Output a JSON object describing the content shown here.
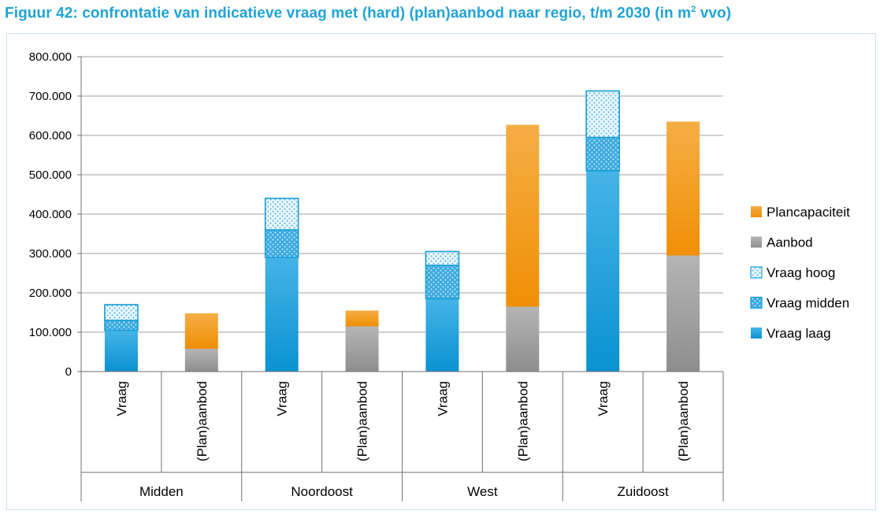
{
  "title": {
    "main": "Figuur 42: confrontatie van indicatieve vraag met (hard) (plan)aanbod naar regio, t/m 2030 (in m",
    "sup": "2",
    "suffix": " vvo)"
  },
  "chart_data": {
    "type": "bar",
    "stacked": true,
    "ylim": [
      0,
      800000
    ],
    "yticks": [
      0,
      100000,
      200000,
      300000,
      400000,
      500000,
      600000,
      700000,
      800000
    ],
    "ytick_labels": [
      "0",
      "100.000",
      "200.000",
      "300.000",
      "400.000",
      "500.000",
      "600.000",
      "700.000",
      "800.000"
    ],
    "grid": true,
    "legend_position": "right",
    "groups": [
      "Midden",
      "Noordoost",
      "West",
      "Zuidoost"
    ],
    "categories": [
      "Vraag",
      "(Plan)aanbod",
      "Vraag",
      "(Plan)aanbod",
      "Vraag",
      "(Plan)aanbod",
      "Vraag",
      "(Plan)aanbod"
    ],
    "series": [
      {
        "name": "Vraag laag",
        "color": "#1a9fd9",
        "pattern": "solid",
        "values": [
          105000,
          0,
          290000,
          0,
          185000,
          0,
          510000,
          0
        ]
      },
      {
        "name": "Vraag midden",
        "color": "#1a9fd9",
        "pattern": "dense-dots",
        "values": [
          25000,
          0,
          70000,
          0,
          85000,
          0,
          85000,
          0
        ]
      },
      {
        "name": "Vraag hoog",
        "color": "#1a9fd9",
        "pattern": "light-dots",
        "values": [
          40000,
          0,
          80000,
          0,
          35000,
          0,
          118000,
          0
        ]
      },
      {
        "name": "Aanbod",
        "color": "#a3a3a3",
        "pattern": "solid",
        "values": [
          0,
          58000,
          0,
          115000,
          0,
          165000,
          0,
          295000
        ]
      },
      {
        "name": "Plancapaciteit",
        "color": "#f39a1a",
        "pattern": "solid",
        "values": [
          0,
          90000,
          0,
          40000,
          0,
          462000,
          0,
          340000
        ]
      }
    ],
    "legend_order": [
      "Plancapaciteit",
      "Aanbod",
      "Vraag hoog",
      "Vraag midden",
      "Vraag laag"
    ]
  }
}
